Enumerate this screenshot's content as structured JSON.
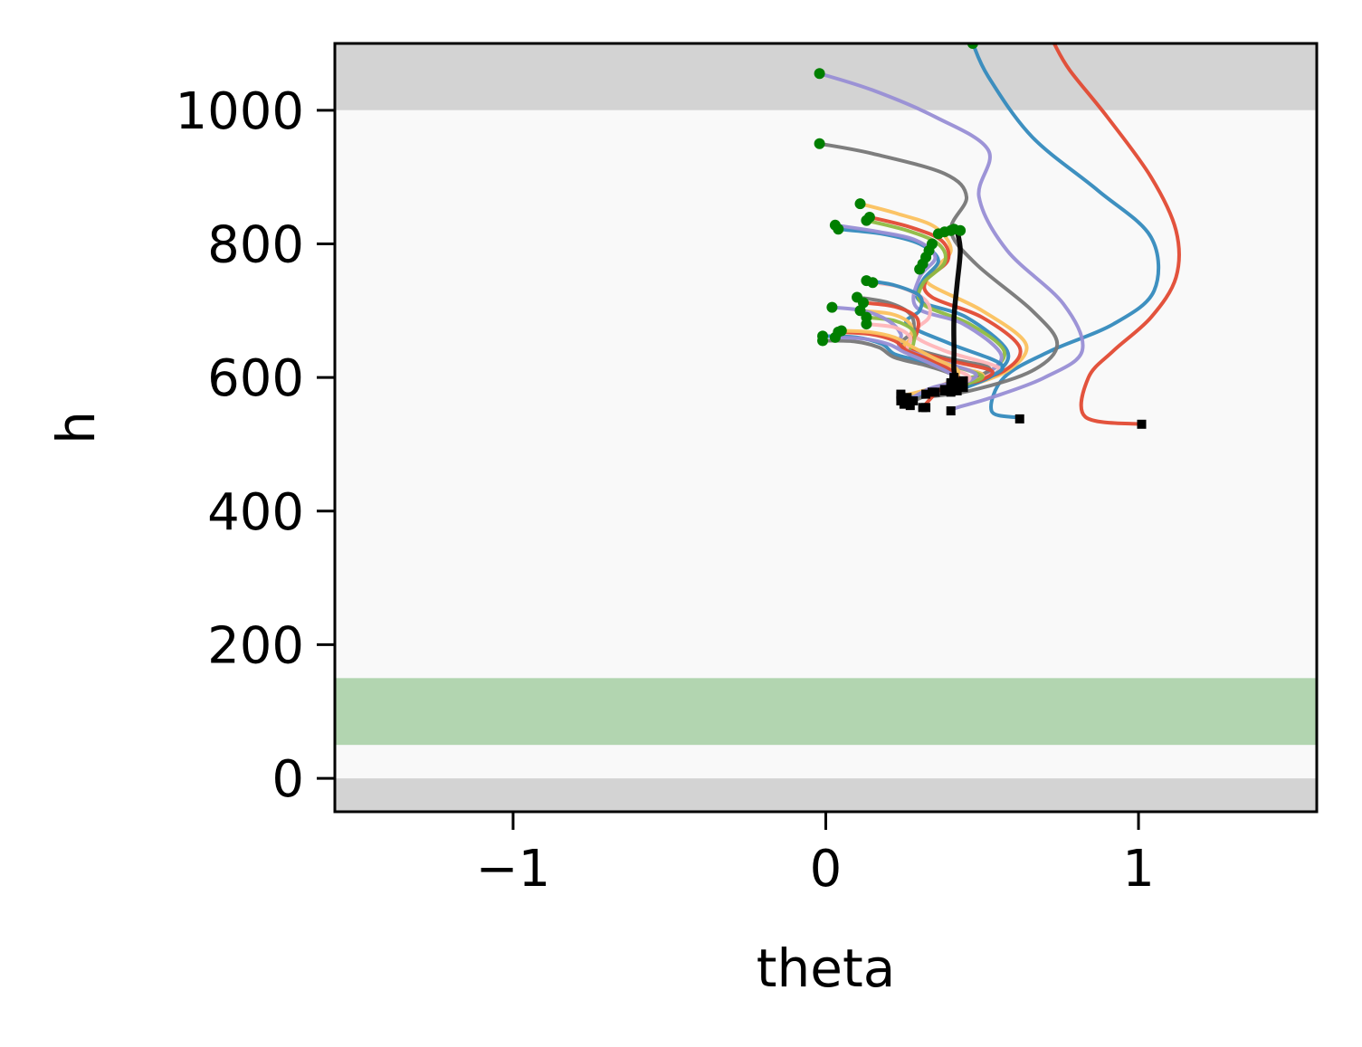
{
  "chart_data": {
    "type": "line",
    "title": "",
    "xlabel": "theta",
    "ylabel": "h",
    "xlim": [
      -1.57,
      1.57
    ],
    "ylim": [
      -50,
      1100
    ],
    "grid": false,
    "legend": "none",
    "x_ticks": [
      {
        "value": -1,
        "label": "−1"
      },
      {
        "value": 0,
        "label": "0"
      },
      {
        "value": 1,
        "label": "1"
      }
    ],
    "y_ticks": [
      {
        "value": 0,
        "label": "0"
      },
      {
        "value": 200,
        "label": "200"
      },
      {
        "value": 400,
        "label": "400"
      },
      {
        "value": 600,
        "label": "600"
      },
      {
        "value": 800,
        "label": "800"
      },
      {
        "value": 1000,
        "label": "1000"
      }
    ],
    "bands": [
      {
        "y0": 1000,
        "y1": 1100,
        "color": "#d3d3d3"
      },
      {
        "y0": -50,
        "y1": 0,
        "color": "#d3d3d3"
      },
      {
        "y0": 0,
        "y1": 1000,
        "color": "#f9f9f9"
      },
      {
        "y0": 50,
        "y1": 150,
        "color": "#b2d5b0"
      }
    ],
    "start_marker_color": "#007f00",
    "end_marker_color": "#000000",
    "series": [
      {
        "color": "#e24a33",
        "points": [
          [
            0.73,
            1100
          ],
          [
            0.78,
            1060
          ],
          [
            0.9,
            990
          ],
          [
            1.04,
            900
          ],
          [
            1.12,
            820
          ],
          [
            1.12,
            750
          ],
          [
            1.04,
            690
          ],
          [
            0.92,
            640
          ],
          [
            0.84,
            600
          ],
          [
            0.83,
            541
          ],
          [
            1.01,
            530
          ]
        ],
        "marker_start": false,
        "marker_end": true
      },
      {
        "color": "#348abd",
        "points": [
          [
            0.47,
            1100
          ],
          [
            0.52,
            1050
          ],
          [
            0.66,
            960
          ],
          [
            0.87,
            880
          ],
          [
            1.04,
            810
          ],
          [
            1.05,
            730
          ],
          [
            0.92,
            680
          ],
          [
            0.72,
            640
          ],
          [
            0.57,
            600
          ],
          [
            0.53,
            550
          ],
          [
            0.61,
            540
          ],
          [
            0.62,
            538
          ]
        ],
        "marker_start": true,
        "marker_end": true
      },
      {
        "color": "#988ed5",
        "points": [
          [
            -0.02,
            1055
          ],
          [
            0.15,
            1030
          ],
          [
            0.35,
            990
          ],
          [
            0.52,
            940
          ],
          [
            0.49,
            870
          ],
          [
            0.58,
            790
          ],
          [
            0.76,
            710
          ],
          [
            0.82,
            640
          ],
          [
            0.7,
            600
          ],
          [
            0.53,
            570
          ],
          [
            0.42,
            555
          ],
          [
            0.4,
            550
          ]
        ],
        "marker_start": true,
        "marker_end": true
      },
      {
        "color": "#777777",
        "points": [
          [
            -0.02,
            950
          ],
          [
            0.15,
            935
          ],
          [
            0.38,
            905
          ],
          [
            0.45,
            870
          ],
          [
            0.4,
            820
          ],
          [
            0.48,
            770
          ],
          [
            0.66,
            700
          ],
          [
            0.74,
            650
          ],
          [
            0.66,
            610
          ],
          [
            0.46,
            580
          ],
          [
            0.3,
            570
          ],
          [
            0.25,
            568
          ]
        ],
        "marker_start": true,
        "marker_end": true
      },
      {
        "color": "#fbc15e",
        "points": [
          [
            0.11,
            860
          ],
          [
            0.23,
            845
          ],
          [
            0.35,
            825
          ],
          [
            0.4,
            790
          ],
          [
            0.34,
            760
          ],
          [
            0.33,
            740
          ],
          [
            0.5,
            700
          ],
          [
            0.64,
            650
          ],
          [
            0.58,
            610
          ],
          [
            0.44,
            585
          ]
        ],
        "marker_start": true,
        "marker_end": true
      },
      {
        "color": "#e24a33",
        "points": [
          [
            0.14,
            840
          ],
          [
            0.27,
            825
          ],
          [
            0.37,
            805
          ],
          [
            0.39,
            775
          ],
          [
            0.32,
            745
          ],
          [
            0.34,
            720
          ],
          [
            0.5,
            690
          ],
          [
            0.62,
            645
          ],
          [
            0.57,
            610
          ],
          [
            0.43,
            590
          ]
        ],
        "marker_start": true,
        "marker_end": true
      },
      {
        "color": "#348abd",
        "points": [
          [
            0.04,
            822
          ],
          [
            0.18,
            815
          ],
          [
            0.3,
            800
          ],
          [
            0.36,
            775
          ],
          [
            0.31,
            745
          ],
          [
            0.3,
            715
          ],
          [
            0.45,
            690
          ],
          [
            0.58,
            640
          ],
          [
            0.54,
            605
          ],
          [
            0.42,
            580
          ]
        ],
        "marker_start": true,
        "marker_end": true
      },
      {
        "color": "#8eba42",
        "points": [
          [
            0.13,
            835
          ],
          [
            0.26,
            820
          ],
          [
            0.36,
            800
          ],
          [
            0.38,
            772
          ],
          [
            0.31,
            740
          ],
          [
            0.31,
            710
          ],
          [
            0.46,
            680
          ],
          [
            0.57,
            640
          ],
          [
            0.52,
            608
          ],
          [
            0.41,
            595
          ]
        ],
        "marker_start": true,
        "marker_end": true
      },
      {
        "color": "#988ed5",
        "points": [
          [
            0.03,
            828
          ],
          [
            0.17,
            818
          ],
          [
            0.29,
            805
          ],
          [
            0.35,
            780
          ],
          [
            0.3,
            750
          ],
          [
            0.29,
            705
          ],
          [
            0.44,
            680
          ],
          [
            0.56,
            635
          ],
          [
            0.51,
            605
          ],
          [
            0.4,
            592
          ]
        ],
        "marker_start": true,
        "marker_end": true
      },
      {
        "color": "#ffb5b8",
        "points": [
          [
            0.15,
            742
          ],
          [
            0.24,
            735
          ],
          [
            0.32,
            715
          ],
          [
            0.33,
            690
          ],
          [
            0.28,
            665
          ],
          [
            0.38,
            640
          ],
          [
            0.55,
            615
          ],
          [
            0.5,
            600
          ],
          [
            0.4,
            590
          ]
        ],
        "marker_start": true,
        "marker_end": true
      },
      {
        "color": "#348abd",
        "points": [
          [
            0.13,
            745
          ],
          [
            0.22,
            738
          ],
          [
            0.3,
            722
          ],
          [
            0.3,
            700
          ],
          [
            0.26,
            680
          ],
          [
            0.4,
            650
          ],
          [
            0.56,
            620
          ],
          [
            0.52,
            600
          ],
          [
            0.42,
            585
          ]
        ],
        "marker_start": true,
        "marker_end": true
      },
      {
        "color": "#777777",
        "points": [
          [
            0.1,
            720
          ],
          [
            0.2,
            712
          ],
          [
            0.27,
            695
          ],
          [
            0.28,
            670
          ],
          [
            0.25,
            650
          ],
          [
            0.38,
            630
          ],
          [
            0.52,
            615
          ],
          [
            0.48,
            600
          ],
          [
            0.4,
            582
          ]
        ],
        "marker_start": true,
        "marker_end": true
      },
      {
        "color": "#e24a33",
        "points": [
          [
            0.12,
            712
          ],
          [
            0.22,
            706
          ],
          [
            0.29,
            690
          ],
          [
            0.29,
            665
          ],
          [
            0.26,
            645
          ],
          [
            0.4,
            625
          ],
          [
            0.53,
            610
          ],
          [
            0.49,
            595
          ],
          [
            0.42,
            590
          ]
        ],
        "marker_start": true,
        "marker_end": true
      },
      {
        "color": "#fbc15e",
        "points": [
          [
            0.11,
            700
          ],
          [
            0.21,
            695
          ],
          [
            0.27,
            680
          ],
          [
            0.27,
            658
          ],
          [
            0.25,
            640
          ],
          [
            0.38,
            620
          ],
          [
            0.5,
            605
          ],
          [
            0.46,
            592
          ],
          [
            0.38,
            580
          ]
        ],
        "marker_start": true,
        "marker_end": true
      },
      {
        "color": "#8eba42",
        "points": [
          [
            0.13,
            690
          ],
          [
            0.22,
            685
          ],
          [
            0.28,
            670
          ],
          [
            0.28,
            650
          ],
          [
            0.27,
            635
          ],
          [
            0.4,
            618
          ],
          [
            0.5,
            602
          ],
          [
            0.45,
            590
          ],
          [
            0.4,
            578
          ]
        ],
        "marker_start": true,
        "marker_end": true
      },
      {
        "color": "#988ed5",
        "points": [
          [
            0.02,
            705
          ],
          [
            0.12,
            700
          ],
          [
            0.2,
            685
          ],
          [
            0.24,
            665
          ],
          [
            0.24,
            645
          ],
          [
            0.36,
            625
          ],
          [
            0.48,
            605
          ],
          [
            0.42,
            588
          ],
          [
            0.34,
            578
          ]
        ],
        "marker_start": true,
        "marker_end": true
      },
      {
        "color": "#ffb5b8",
        "points": [
          [
            0.13,
            680
          ],
          [
            0.22,
            675
          ],
          [
            0.27,
            660
          ],
          [
            0.26,
            640
          ],
          [
            0.3,
            625
          ],
          [
            0.42,
            610
          ],
          [
            0.46,
            598
          ],
          [
            0.4,
            585
          ],
          [
            0.32,
            575
          ]
        ],
        "marker_start": true,
        "marker_end": true
      },
      {
        "color": "#348abd",
        "points": [
          [
            -0.01,
            662
          ],
          [
            0.1,
            660
          ],
          [
            0.18,
            650
          ],
          [
            0.22,
            635
          ],
          [
            0.3,
            625
          ],
          [
            0.4,
            610
          ],
          [
            0.42,
            595
          ],
          [
            0.34,
            578
          ],
          [
            0.26,
            570
          ]
        ],
        "marker_start": true,
        "marker_end": true
      },
      {
        "color": "#777777",
        "points": [
          [
            -0.01,
            655
          ],
          [
            0.09,
            654
          ],
          [
            0.17,
            645
          ],
          [
            0.22,
            630
          ],
          [
            0.32,
            618
          ],
          [
            0.4,
            605
          ],
          [
            0.4,
            592
          ],
          [
            0.33,
            575
          ],
          [
            0.28,
            565
          ]
        ],
        "marker_start": true,
        "marker_end": true
      },
      {
        "color": "#e24a33",
        "points": [
          [
            0.04,
            668
          ],
          [
            0.14,
            665
          ],
          [
            0.22,
            655
          ],
          [
            0.26,
            640
          ],
          [
            0.34,
            625
          ],
          [
            0.41,
            608
          ],
          [
            0.42,
            596
          ],
          [
            0.36,
            580
          ],
          [
            0.31,
            555
          ]
        ],
        "marker_start": true,
        "marker_end": true
      },
      {
        "color": "#fbc15e",
        "points": [
          [
            0.05,
            670
          ],
          [
            0.14,
            668
          ],
          [
            0.22,
            660
          ],
          [
            0.28,
            645
          ],
          [
            0.35,
            628
          ],
          [
            0.42,
            612
          ],
          [
            0.41,
            598
          ],
          [
            0.35,
            585
          ],
          [
            0.24,
            572
          ]
        ],
        "marker_start": true,
        "marker_end": true
      },
      {
        "color": "#988ed5",
        "points": [
          [
            0.03,
            660
          ],
          [
            0.12,
            658
          ],
          [
            0.2,
            650
          ],
          [
            0.25,
            638
          ],
          [
            0.33,
            622
          ],
          [
            0.4,
            605
          ],
          [
            0.4,
            593
          ],
          [
            0.33,
            583
          ],
          [
            0.26,
            565
          ]
        ],
        "marker_start": true,
        "marker_end": true
      },
      {
        "color": "#000000",
        "width": 5.5,
        "points": [
          [
            0.42,
            820
          ],
          [
            0.43,
            790
          ],
          [
            0.42,
            740
          ],
          [
            0.41,
            690
          ],
          [
            0.41,
            640
          ],
          [
            0.41,
            610
          ],
          [
            0.42,
            595
          ]
        ],
        "marker_start": false,
        "marker_end": false
      }
    ],
    "extra_start_markers": [
      [
        0.36,
        815
      ],
      [
        0.38,
        818
      ],
      [
        0.4,
        820
      ],
      [
        0.41,
        822
      ],
      [
        0.43,
        820
      ],
      [
        0.34,
        800
      ],
      [
        0.33,
        790
      ],
      [
        0.32,
        780
      ],
      [
        0.31,
        770
      ],
      [
        0.3,
        762
      ]
    ],
    "extra_end_markers": [
      [
        0.24,
        575
      ],
      [
        0.24,
        565
      ],
      [
        0.25,
        560
      ],
      [
        0.27,
        558
      ],
      [
        0.32,
        555
      ],
      [
        0.35,
        578
      ],
      [
        0.38,
        582
      ],
      [
        0.4,
        585
      ],
      [
        0.43,
        592
      ],
      [
        0.44,
        595
      ],
      [
        0.41,
        600
      ]
    ]
  }
}
